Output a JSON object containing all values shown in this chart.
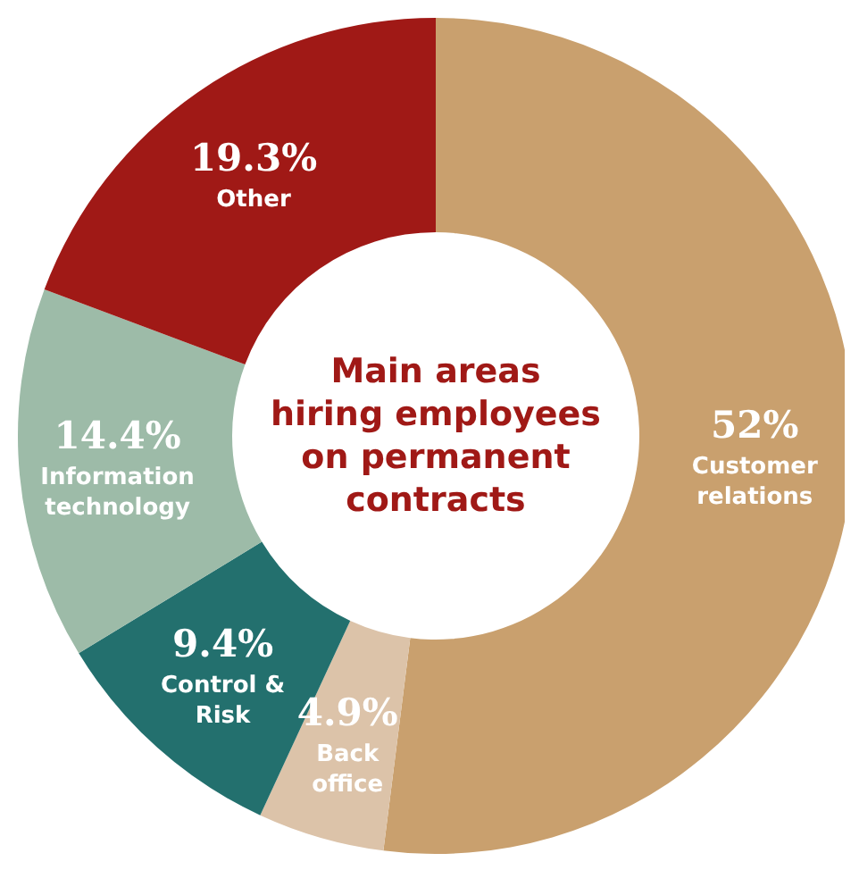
{
  "chart_data": {
    "type": "donut",
    "title": "Main areas hiring employees on permanent contracts",
    "categories": [
      "Customer relations",
      "Back office",
      "Control & Risk",
      "Information technology",
      "Other"
    ],
    "values": [
      52,
      4.9,
      9.4,
      14.4,
      19.3
    ],
    "value_labels": [
      "52%",
      "4.9%",
      "9.4%",
      "14.4%",
      "19.3%"
    ],
    "colors": [
      "#c9a06e",
      "#dcc3a9",
      "#23706e",
      "#9dbba8",
      "#a01916"
    ],
    "legend": false
  }
}
